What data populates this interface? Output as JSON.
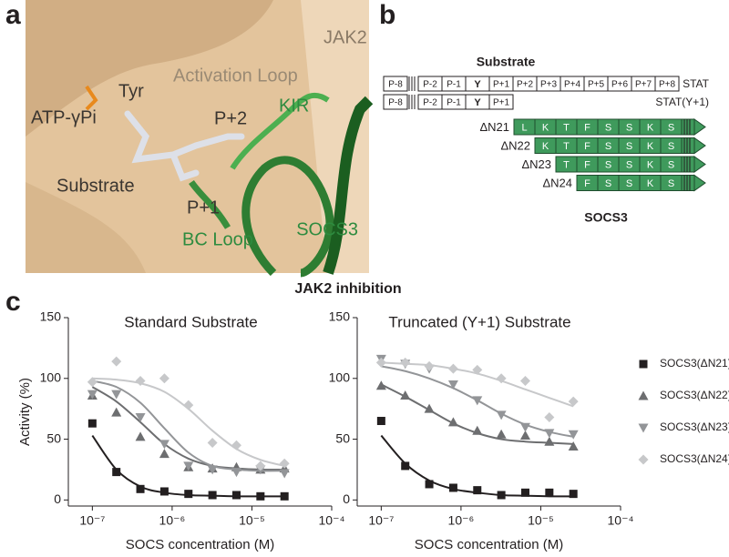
{
  "panel_labels": [
    "a",
    "b",
    "c"
  ],
  "panel_a": {
    "labels": {
      "jak2": "JAK2",
      "activation_loop": "Activation Loop",
      "kir": "KIR",
      "tyr": "Tyr",
      "atp": "ATP-γPi",
      "p2": "P+2",
      "substrate": "Substrate",
      "p1": "P+1",
      "bc_loop": "BC Loop",
      "socs3": "SOCS3"
    }
  },
  "panel_b": {
    "substrate_title": "Substrate",
    "substrates": [
      {
        "name": "STAT",
        "cells": [
          "P-8",
          "P-2",
          "P-1",
          "Y",
          "P+1",
          "P+2",
          "P+3",
          "P+4",
          "P+5",
          "P+6",
          "P+7",
          "P+8"
        ]
      },
      {
        "name": "STAT(Y+1)",
        "cells": [
          "P-8",
          "P-2",
          "P-1",
          "Y",
          "P+1"
        ]
      }
    ],
    "socs_title": "SOCS3",
    "constructs": [
      {
        "name": "ΔN21",
        "residues": [
          "L",
          "K",
          "T",
          "F",
          "S",
          "S",
          "K",
          "S"
        ]
      },
      {
        "name": "ΔN22",
        "residues": [
          "K",
          "T",
          "F",
          "S",
          "S",
          "K",
          "S"
        ]
      },
      {
        "name": "ΔN23",
        "residues": [
          "T",
          "F",
          "S",
          "S",
          "K",
          "S"
        ]
      },
      {
        "name": "ΔN24",
        "residues": [
          "F",
          "S",
          "S",
          "K",
          "S"
        ]
      }
    ]
  },
  "figure_title": "JAK2 inhibition",
  "chart_data": [
    {
      "type": "scatter",
      "title": "Standard Substrate",
      "xlabel": "SOCS concentration (M)",
      "ylabel": "Activity (%)",
      "xlog": true,
      "xlim": [
        5e-08,
        0.0001
      ],
      "xticks": [
        {
          "value": 1e-07,
          "label": "10⁻⁷"
        },
        {
          "value": 1e-06,
          "label": "10⁻⁶"
        },
        {
          "value": 1e-05,
          "label": "10⁻⁵"
        },
        {
          "value": 0.0001,
          "label": "10⁻⁴"
        }
      ],
      "ylim": [
        -5,
        150
      ],
      "yticks": [
        0,
        50,
        100,
        150
      ],
      "x": [
        1e-07,
        2e-07,
        4e-07,
        8e-07,
        1.6e-06,
        3.2e-06,
        6.4e-06,
        1.28e-05,
        2.56e-05
      ],
      "series": [
        {
          "color": "#231f20",
          "marker": "square",
          "values": [
            63,
            23,
            9,
            7,
            5,
            4,
            4,
            3,
            3
          ],
          "fit": [
            53,
            25,
            11,
            6,
            4,
            3.5,
            3,
            3,
            3
          ]
        },
        {
          "color": "#6d6e70",
          "marker": "triangle-up",
          "values": [
            86,
            72,
            52,
            38,
            27,
            26,
            27,
            25,
            26
          ],
          "fit": [
            93,
            81,
            64,
            46,
            34,
            28,
            26,
            25,
            25
          ]
        },
        {
          "color": "#939598",
          "marker": "triangle-down",
          "values": [
            87,
            87,
            68,
            46,
            28,
            25,
            23,
            25,
            22
          ],
          "fit": [
            98,
            93,
            80,
            59,
            39,
            28,
            25,
            24,
            24
          ]
        },
        {
          "color": "#c7c8ca",
          "marker": "diamond",
          "values": [
            97,
            114,
            98,
            100,
            78,
            47,
            45,
            28,
            30
          ],
          "fit": [
            100,
            99,
            96,
            89,
            75,
            57,
            42,
            33,
            28
          ]
        }
      ]
    },
    {
      "type": "scatter",
      "title": "Truncated (Y+1) Substrate",
      "xlabel": "SOCS concentration (M)",
      "xlog": true,
      "xlim": [
        5e-08,
        0.0001
      ],
      "xticks": [
        {
          "value": 1e-07,
          "label": "10⁻⁷"
        },
        {
          "value": 1e-06,
          "label": "10⁻⁶"
        },
        {
          "value": 1e-05,
          "label": "10⁻⁵"
        },
        {
          "value": 0.0001,
          "label": "10⁻⁴"
        }
      ],
      "ylim": [
        -5,
        150
      ],
      "yticks": [
        0,
        50,
        100,
        150
      ],
      "legend": "right",
      "x": [
        1e-07,
        2e-07,
        4e-07,
        8e-07,
        1.6e-06,
        3.2e-06,
        6.4e-06,
        1.28e-05,
        2.56e-05
      ],
      "series": [
        {
          "name": "SOCS3(ΔN21)",
          "color": "#231f20",
          "marker": "square",
          "values": [
            65,
            28,
            13,
            10,
            8,
            4,
            6,
            6,
            5
          ],
          "fit": [
            53,
            30,
            16,
            9,
            6,
            4,
            3.5,
            3,
            3
          ]
        },
        {
          "name": "SOCS3(ΔN22)",
          "color": "#6d6e70",
          "marker": "triangle-up",
          "values": [
            94,
            86,
            75,
            64,
            57,
            54,
            53,
            48,
            44
          ],
          "fit": [
            95,
            85,
            74,
            63,
            55,
            50,
            48,
            47,
            46
          ]
        },
        {
          "name": "SOCS3(ΔN23)",
          "color": "#939598",
          "marker": "triangle-down",
          "values": [
            116,
            112,
            108,
            95,
            82,
            70,
            60,
            55,
            54
          ],
          "fit": [
            110,
            106,
            100,
            92,
            82,
            71,
            62,
            56,
            52
          ]
        },
        {
          "name": "SOCS3(ΔN24)",
          "color": "#c7c8ca",
          "marker": "diamond",
          "values": [
            113,
            113,
            110,
            108,
            107,
            100,
            98,
            68,
            81
          ],
          "fit": [
            113,
            112,
            111,
            108,
            104,
            98,
            91,
            84,
            77
          ]
        }
      ]
    }
  ]
}
